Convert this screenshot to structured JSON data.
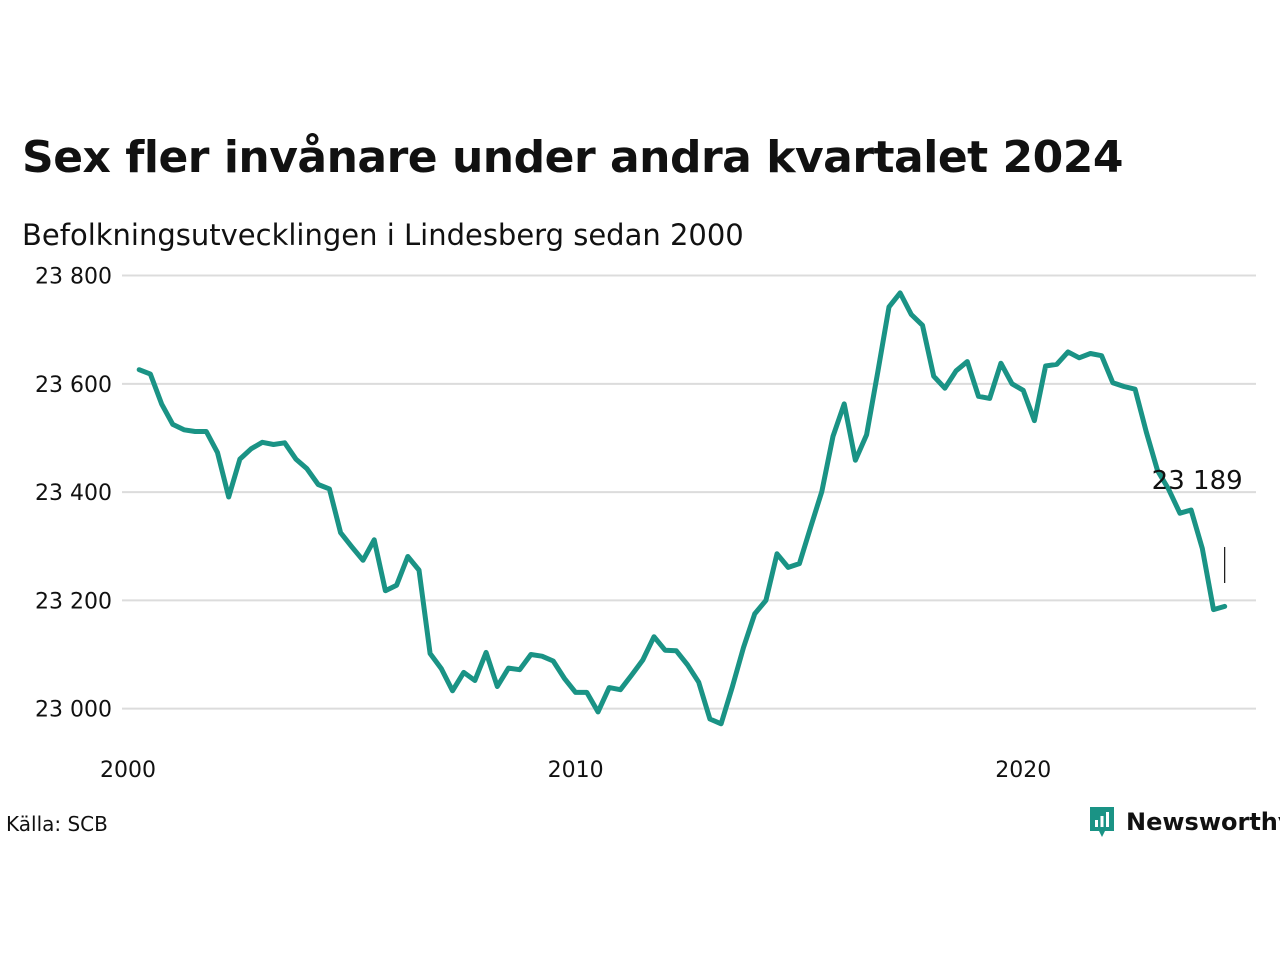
{
  "title": "Sex fler invånare under andra kvartalet 2024",
  "subtitle": "Befolkningsutvecklingen i Lindesberg sedan 2000",
  "source": "Källa: SCB",
  "brand": "Newsworthy",
  "colors": {
    "line": "#1a9385",
    "grid": "#dcdcdc",
    "brand": "#1a9385"
  },
  "chart_data": {
    "type": "line",
    "title": "Sex fler invånare under andra kvartalet 2024",
    "subtitle": "Befolkningsutvecklingen i Lindesberg sedan 2000",
    "xlabel": "",
    "ylabel": "",
    "ylim": [
      22920,
      23825
    ],
    "xlim": [
      2000,
      2025.2
    ],
    "y_ticks": [
      23000,
      23200,
      23400,
      23600,
      23800
    ],
    "y_tick_labels": [
      "23 000",
      "23 200",
      "23 400",
      "23 600",
      "23 800"
    ],
    "x_ticks": [
      2000,
      2010,
      2020
    ],
    "x_tick_labels": [
      "2000",
      "2010",
      "2020"
    ],
    "grid": "horizontal",
    "end_label": "23 189",
    "x": [
      2000.25,
      2000.5,
      2000.75,
      2001.0,
      2001.25,
      2001.5,
      2001.75,
      2002.0,
      2002.25,
      2002.5,
      2002.75,
      2003.0,
      2003.25,
      2003.5,
      2003.75,
      2004.0,
      2004.25,
      2004.5,
      2004.75,
      2005.0,
      2005.25,
      2005.5,
      2005.75,
      2006.0,
      2006.25,
      2006.5,
      2006.75,
      2007.0,
      2007.25,
      2007.5,
      2007.75,
      2008.0,
      2008.25,
      2008.5,
      2008.75,
      2009.0,
      2009.25,
      2009.5,
      2009.75,
      2010.0,
      2010.25,
      2010.5,
      2010.75,
      2011.0,
      2011.25,
      2011.5,
      2011.75,
      2012.0,
      2012.25,
      2012.5,
      2012.75,
      2013.0,
      2013.25,
      2013.5,
      2013.75,
      2014.0,
      2014.25,
      2014.5,
      2014.75,
      2015.0,
      2015.25,
      2015.5,
      2015.75,
      2016.0,
      2016.25,
      2016.5,
      2016.75,
      2017.0,
      2017.25,
      2017.5,
      2017.75,
      2018.0,
      2018.25,
      2018.5,
      2018.75,
      2019.0,
      2019.25,
      2019.5,
      2019.75,
      2020.0,
      2020.25,
      2020.5,
      2020.75,
      2021.0,
      2021.25,
      2021.5,
      2021.75,
      2022.0,
      2022.25,
      2022.5,
      2022.75,
      2023.0,
      2023.25,
      2023.5,
      2023.75,
      2024.0,
      2024.25,
      2024.5
    ],
    "series": [
      {
        "values": [
          23626,
          23618,
          23563,
          23525,
          23515,
          23512,
          23512,
          23473,
          23391,
          23461,
          23480,
          23492,
          23488,
          23491,
          23461,
          23443,
          23414,
          23406,
          23325,
          23299,
          23274,
          23312,
          23218,
          23228,
          23281,
          23256,
          23102,
          23074,
          23033,
          23067,
          23052,
          23104,
          23041,
          23075,
          23072,
          23100,
          23097,
          23088,
          23056,
          23030,
          23030,
          22994,
          23039,
          23035,
          23062,
          23090,
          23133,
          23108,
          23107,
          23081,
          23049,
          22981,
          22972,
          23040,
          23113,
          23175,
          23200,
          23286,
          23261,
          23268,
          23335,
          23401,
          23503,
          23563,
          23459,
          23506,
          23622,
          23742,
          23768,
          23728,
          23708,
          23614,
          23592,
          23624,
          23641,
          23577,
          23573,
          23638,
          23600,
          23588,
          23532,
          23633,
          23636,
          23659,
          23648,
          23656,
          23652,
          23602,
          23595,
          23590,
          23511,
          23440,
          23405,
          23361,
          23367,
          23296,
          23183,
          23189
        ]
      }
    ]
  }
}
